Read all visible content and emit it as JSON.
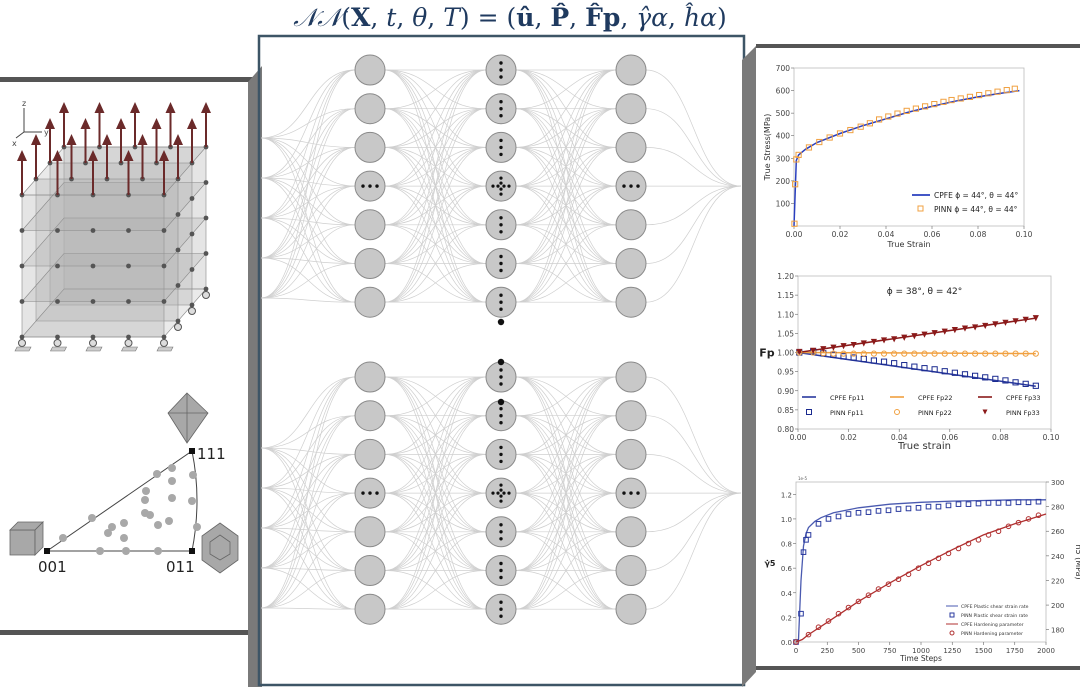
{
  "title": {
    "lhs_func": "𝒩𝒩",
    "lhs_args": [
      "X",
      "t",
      "θ",
      "T"
    ],
    "rhs": [
      "û",
      "P̂",
      "F̂p",
      "γ̂α",
      "ĥα"
    ]
  },
  "left_panel": {
    "axis_labels": {
      "z": "z",
      "y": "y",
      "x": "x"
    },
    "ipf": {
      "corners": [
        "001",
        "011",
        "111"
      ]
    }
  },
  "network": {
    "layers_visible": 3,
    "nodes_per_block": 7,
    "blocks": 2
  },
  "colors": {
    "title": "#1f3a5f",
    "frame": "#3d5566",
    "cpfe_blue": "#2a3fbf",
    "pinn_orange": "#f0a040",
    "fp33_red": "#8b1a1a",
    "hardening_red": "#b03030",
    "arrow": "#6b2a2a",
    "node": "#c8c8c8"
  },
  "chart_data": [
    {
      "type": "line",
      "title": "",
      "xlabel": "True Strain",
      "ylabel": "True Stress(MPa)",
      "xlim": [
        0,
        0.1
      ],
      "ylim": [
        0,
        700
      ],
      "xticks": [
        "0.00",
        "0.02",
        "0.04",
        "0.06",
        "0.08",
        "0.10"
      ],
      "yticks": [
        "100",
        "200",
        "300",
        "400",
        "500",
        "600",
        "700"
      ],
      "legend": "bottom-right",
      "series": [
        {
          "name": "CPFE",
          "label": "CPFE  ϕ = 44°, θ = 44°",
          "kind": "line",
          "x": [
            0,
            0.001,
            0.002,
            0.005,
            0.01,
            0.02,
            0.03,
            0.04,
            0.05,
            0.06,
            0.07,
            0.08,
            0.09,
            0.098
          ],
          "y": [
            0,
            290,
            315,
            340,
            370,
            410,
            445,
            475,
            505,
            530,
            553,
            572,
            588,
            600
          ]
        },
        {
          "name": "PINN",
          "label": "PINN  ϕ = 44°, θ = 44°",
          "kind": "square",
          "x": [
            0.0002,
            0.0005,
            0.001,
            0.002,
            0.0065,
            0.011,
            0.0155,
            0.02,
            0.0245,
            0.029,
            0.033,
            0.037,
            0.041,
            0.045,
            0.049,
            0.053,
            0.057,
            0.061,
            0.065,
            0.0685,
            0.0725,
            0.0765,
            0.0805,
            0.0845,
            0.0885,
            0.0925,
            0.096
          ],
          "y": [
            10,
            185,
            295,
            315,
            348,
            372,
            392,
            410,
            425,
            440,
            455,
            472,
            485,
            498,
            510,
            520,
            530,
            540,
            550,
            558,
            565,
            572,
            580,
            588,
            595,
            602,
            608
          ]
        }
      ]
    },
    {
      "type": "line",
      "title": "ϕ = 38°, θ = 42°",
      "xlabel": "True strain",
      "ylabel": "Fp",
      "xlim": [
        0,
        0.1
      ],
      "ylim": [
        0.8,
        1.2
      ],
      "xticks": [
        "0.00",
        "0.02",
        "0.04",
        "0.06",
        "0.08",
        "0.10"
      ],
      "yticks": [
        "0.80",
        "0.85",
        "0.90",
        "0.95",
        "1.00",
        "1.05",
        "1.10",
        "1.15",
        "1.20"
      ],
      "legend": "bottom",
      "series": [
        {
          "name": "CPFE F11",
          "label_a": "CPFE",
          "label_b": "Fp11",
          "kind": "line",
          "color": "#2a3a9f",
          "x": [
            0,
            0.094
          ],
          "y": [
            1.0,
            0.912
          ]
        },
        {
          "name": "CPFE F22",
          "label_a": "CPFE",
          "label_b": "Fp22",
          "kind": "line",
          "color": "#f0a040",
          "x": [
            0,
            0.094
          ],
          "y": [
            1.0,
            0.997
          ]
        },
        {
          "name": "CPFE F33",
          "label_a": "CPFE",
          "label_b": "Fp33",
          "kind": "line",
          "color": "#8b1a1a",
          "x": [
            0,
            0.094
          ],
          "y": [
            1.0,
            1.09
          ]
        },
        {
          "name": "PINN F11",
          "label_a": "PINN",
          "label_b": "Fp11",
          "kind": "square",
          "color": "#1a2a8f",
          "x": [
            0.0005,
            0.006,
            0.01,
            0.014,
            0.018,
            0.022,
            0.026,
            0.03,
            0.034,
            0.038,
            0.042,
            0.046,
            0.05,
            0.054,
            0.058,
            0.062,
            0.066,
            0.07,
            0.074,
            0.078,
            0.082,
            0.086,
            0.09,
            0.094
          ],
          "y": [
            1.0,
            1.003,
            0.998,
            0.994,
            0.99,
            0.987,
            0.983,
            0.979,
            0.976,
            0.972,
            0.967,
            0.963,
            0.959,
            0.956,
            0.951,
            0.947,
            0.943,
            0.939,
            0.935,
            0.931,
            0.927,
            0.922,
            0.918,
            0.913
          ]
        },
        {
          "name": "PINN F22",
          "label_a": "PINN",
          "label_b": "Fp22",
          "kind": "circle",
          "color": "#f0a040",
          "x": [
            0.0005,
            0.006,
            0.01,
            0.014,
            0.018,
            0.022,
            0.026,
            0.03,
            0.034,
            0.038,
            0.042,
            0.046,
            0.05,
            0.054,
            0.058,
            0.062,
            0.066,
            0.07,
            0.074,
            0.078,
            0.082,
            0.086,
            0.09,
            0.094
          ],
          "y": [
            1.0,
            1.0,
            0.998,
            0.997,
            0.997,
            0.997,
            0.997,
            0.997,
            0.997,
            0.997,
            0.997,
            0.997,
            0.997,
            0.997,
            0.997,
            0.997,
            0.997,
            0.997,
            0.997,
            0.997,
            0.997,
            0.997,
            0.997,
            0.997
          ]
        },
        {
          "name": "PINN F33",
          "label_a": "PINN",
          "label_b": "Fp33",
          "kind": "triangle",
          "color": "#8b1a1a",
          "x": [
            0.0005,
            0.006,
            0.01,
            0.014,
            0.018,
            0.022,
            0.026,
            0.03,
            0.034,
            0.038,
            0.042,
            0.046,
            0.05,
            0.054,
            0.058,
            0.062,
            0.066,
            0.07,
            0.074,
            0.078,
            0.082,
            0.086,
            0.09,
            0.094
          ],
          "y": [
            1.002,
            1.005,
            1.009,
            1.013,
            1.017,
            1.02,
            1.024,
            1.028,
            1.032,
            1.035,
            1.039,
            1.043,
            1.047,
            1.051,
            1.055,
            1.059,
            1.063,
            1.066,
            1.07,
            1.074,
            1.078,
            1.082,
            1.086,
            1.09
          ]
        }
      ]
    },
    {
      "type": "line",
      "title": "",
      "xlabel": "Time Steps",
      "ylabel": "γ̇5",
      "ylabel_right": "h5 (MPa)",
      "scale_note": "1e-5",
      "xlim": [
        0,
        2000
      ],
      "ylim": [
        0,
        1.3
      ],
      "ylim_right": [
        170,
        300
      ],
      "xticks": [
        "0",
        "250",
        "500",
        "750",
        "1000",
        "1250",
        "1500",
        "1750",
        "2000"
      ],
      "yticks": [
        "0.0",
        "0.2",
        "0.4",
        "0.6",
        "0.8",
        "1.0",
        "1.2"
      ],
      "yticks_right": [
        "180",
        "200",
        "220",
        "240",
        "260",
        "280",
        "300"
      ],
      "legend": "bottom-right",
      "series": [
        {
          "name": "CPFE Plastic shear strain rate",
          "kind": "line",
          "axis": "left",
          "color": "#4a5ab0",
          "x": [
            0,
            20,
            40,
            60,
            80,
            100,
            150,
            200,
            250,
            300,
            400,
            500,
            750,
            1000,
            1250,
            1500,
            1750,
            2000
          ],
          "y": [
            0,
            0.02,
            0.5,
            0.78,
            0.88,
            0.93,
            0.98,
            1.01,
            1.03,
            1.05,
            1.07,
            1.09,
            1.12,
            1.135,
            1.145,
            1.15,
            1.155,
            1.155
          ]
        },
        {
          "name": "PINN Plastic shear strain rate",
          "kind": "square",
          "axis": "left",
          "color": "#2a3a9f",
          "x": [
            0,
            40,
            60,
            80,
            100,
            180,
            260,
            340,
            420,
            500,
            580,
            660,
            740,
            820,
            900,
            980,
            1060,
            1140,
            1220,
            1300,
            1380,
            1460,
            1540,
            1620,
            1700,
            1780,
            1860,
            1940
          ],
          "y": [
            0,
            0.23,
            0.73,
            0.83,
            0.87,
            0.96,
            1.0,
            1.02,
            1.04,
            1.05,
            1.055,
            1.065,
            1.07,
            1.08,
            1.085,
            1.09,
            1.1,
            1.1,
            1.11,
            1.12,
            1.12,
            1.125,
            1.13,
            1.13,
            1.13,
            1.135,
            1.135,
            1.14
          ]
        },
        {
          "name": "CPFE Hardening parameter",
          "kind": "line",
          "axis": "right",
          "color": "#b03030",
          "x": [
            0,
            50,
            100,
            250,
            500,
            750,
            1000,
            1250,
            1500,
            1750,
            2000
          ],
          "y": [
            170,
            172,
            176,
            186,
            203,
            218,
            232,
            245,
            257,
            266,
            274
          ]
        },
        {
          "name": "PINN Hardening parameter",
          "kind": "circle",
          "axis": "right",
          "color": "#b03030",
          "x": [
            0,
            100,
            180,
            260,
            340,
            420,
            500,
            580,
            660,
            740,
            820,
            900,
            980,
            1060,
            1140,
            1220,
            1300,
            1380,
            1460,
            1540,
            1620,
            1700,
            1780,
            1860,
            1940
          ],
          "y": [
            170,
            176,
            182,
            187,
            193,
            198,
            203,
            208,
            213,
            217,
            221,
            225,
            230,
            234,
            238,
            242,
            246,
            250,
            253,
            257,
            260,
            264,
            267,
            270,
            273
          ]
        }
      ]
    }
  ]
}
